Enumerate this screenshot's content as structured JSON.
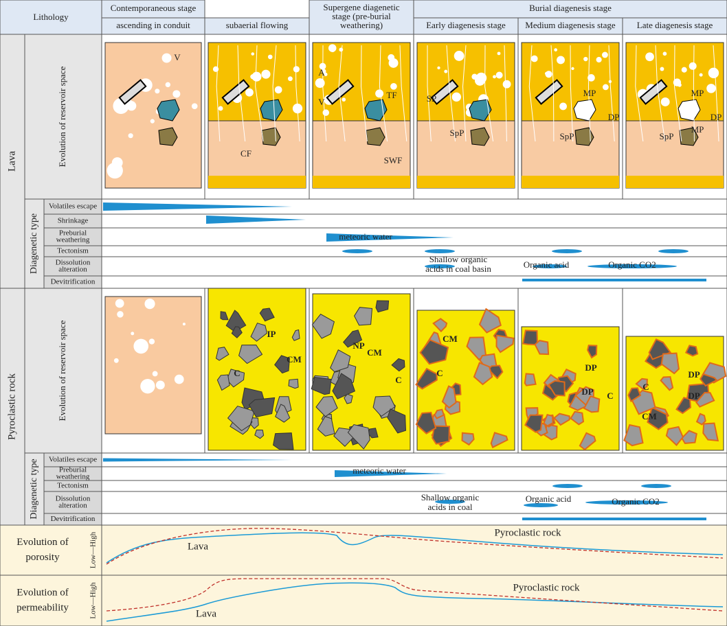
{
  "header": {
    "lithology": "Lithology",
    "stages": [
      [
        "Contemporaneous stage"
      ],
      [
        "Supergene diagenetic",
        "stage (pre-burial",
        "weathering)"
      ],
      [
        "Burial diagenesis stage"
      ]
    ],
    "substages": [
      "ascending in conduit",
      "subaerial flowing",
      "Early diagenesis stage",
      "Medium diagenesis stage",
      "Late diagenesis stage"
    ]
  },
  "lava": {
    "label": "Lava",
    "reservoir_label": "Evolution of reservoir space",
    "diagenetic_label": "Diagenetic type",
    "rows": [
      [
        "Volatiles escape"
      ],
      [
        "Shrinkage"
      ],
      [
        "Preburial",
        "weathering"
      ],
      [
        "Tectonism"
      ],
      [
        "Dissolution",
        "alteration"
      ],
      [
        "Devitrification"
      ]
    ],
    "annotations": {
      "meteoric": "meteoric water",
      "shallow": [
        "Shallow organic",
        "acids in coal basin"
      ],
      "organic_acid": "Organic acid",
      "organic_co2": "Organic CO2"
    },
    "image_labels": [
      "V",
      "CF",
      "A",
      "V",
      "TF",
      "SWF",
      "SP",
      "SpP",
      "MP",
      "DP",
      "SpP",
      "MP",
      "DP",
      "MP",
      "SpP"
    ]
  },
  "pyroclastic": {
    "label": "Pyroclastic rock",
    "reservoir_label": "Evolution of reservoir space",
    "diagenetic_label": "Diagenetic type",
    "rows": [
      [
        "Volatiles escape"
      ],
      [
        "Preburial",
        "weathering"
      ],
      [
        "Tectonism"
      ],
      [
        "Dissolution",
        "alteration"
      ],
      [
        "Devitrification"
      ]
    ],
    "annotations": {
      "meteoric": "meteoric water",
      "shallow": [
        "Shallow organic",
        "acids in coal"
      ],
      "organic_acid": "Organic acid",
      "organic_co2": "Organic CO2"
    },
    "image_labels": [
      "IP",
      "CM",
      "C",
      "CM",
      "NP",
      "C",
      "CM",
      "C",
      "DP",
      "DP",
      "C",
      "DP",
      "DP",
      "C",
      "CM"
    ]
  },
  "porosity": {
    "label": [
      "Evolution of",
      "porosity"
    ],
    "axis": "Low—High",
    "lava": "Lava",
    "pyroclastic": "Pyroclastic rock"
  },
  "permeability": {
    "label": [
      "Evolution of",
      "permeability"
    ],
    "axis": "Low—High",
    "lava": "Lava",
    "pyroclastic": "Pyroclastic rock"
  }
}
